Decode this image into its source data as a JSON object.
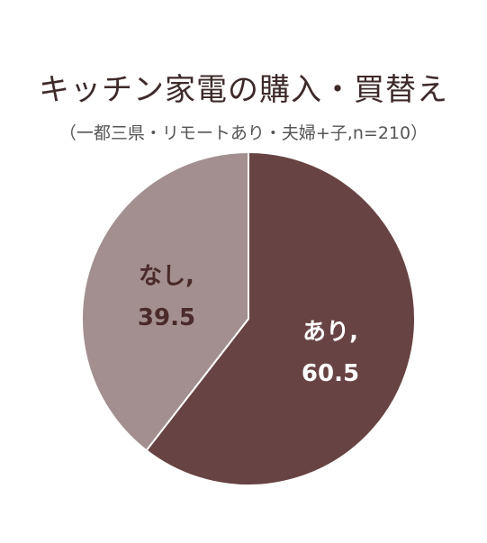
{
  "chart_data": {
    "type": "pie",
    "title": "キッチン家電の購入・買替え",
    "subtitle": "（一都三県・リモートあり・夫婦+子,n=210）",
    "slices": [
      {
        "label": "あり,",
        "value": 60.5,
        "value_text": "60.5",
        "color": "#684343",
        "text_color": "#ffffff"
      },
      {
        "label": "なし,",
        "value": 39.5,
        "value_text": "39.5",
        "color": "#a38f8f",
        "text_color": "#4a2a2a"
      }
    ],
    "start_angle_deg": 0,
    "direction": "clockwise",
    "legend": "none"
  }
}
